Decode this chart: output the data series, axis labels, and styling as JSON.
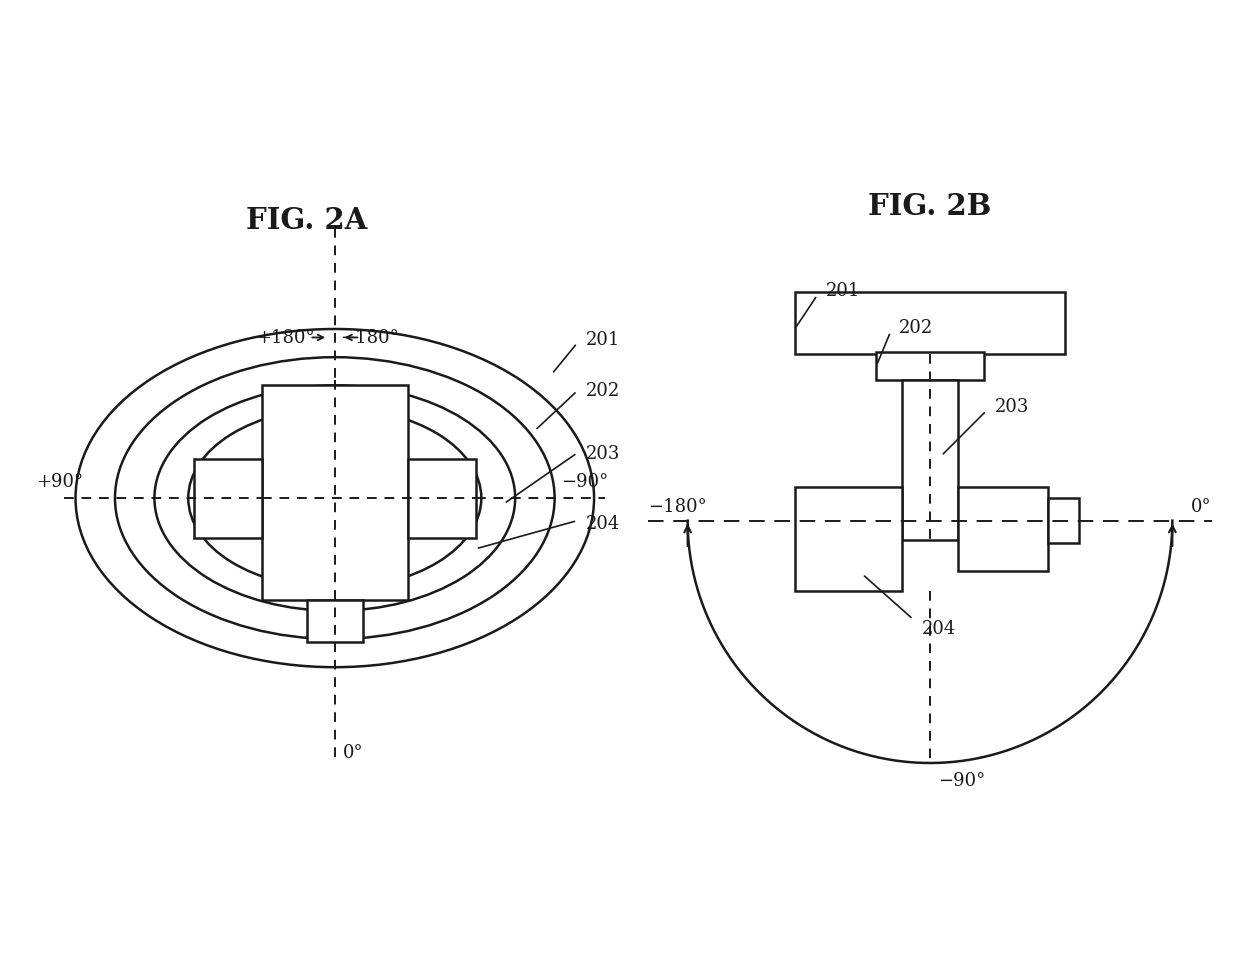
{
  "fig2a_title": "FIG. 2A",
  "fig2b_title": "FIG. 2B",
  "bg_color": "#ffffff",
  "line_color": "#1a1a1a",
  "fill_color": "#ffffff",
  "label_201": "201",
  "label_202": "202",
  "label_203": "203",
  "label_204": "204",
  "angle_pos180": "+180°",
  "angle_neg180": "−180°",
  "angle_pos90": "+90°",
  "angle_neg90": "−90°",
  "angle_0a": "0°",
  "angle_neg90b": "−90°",
  "angle_neg180b": "−180°",
  "angle_0b": "0°"
}
